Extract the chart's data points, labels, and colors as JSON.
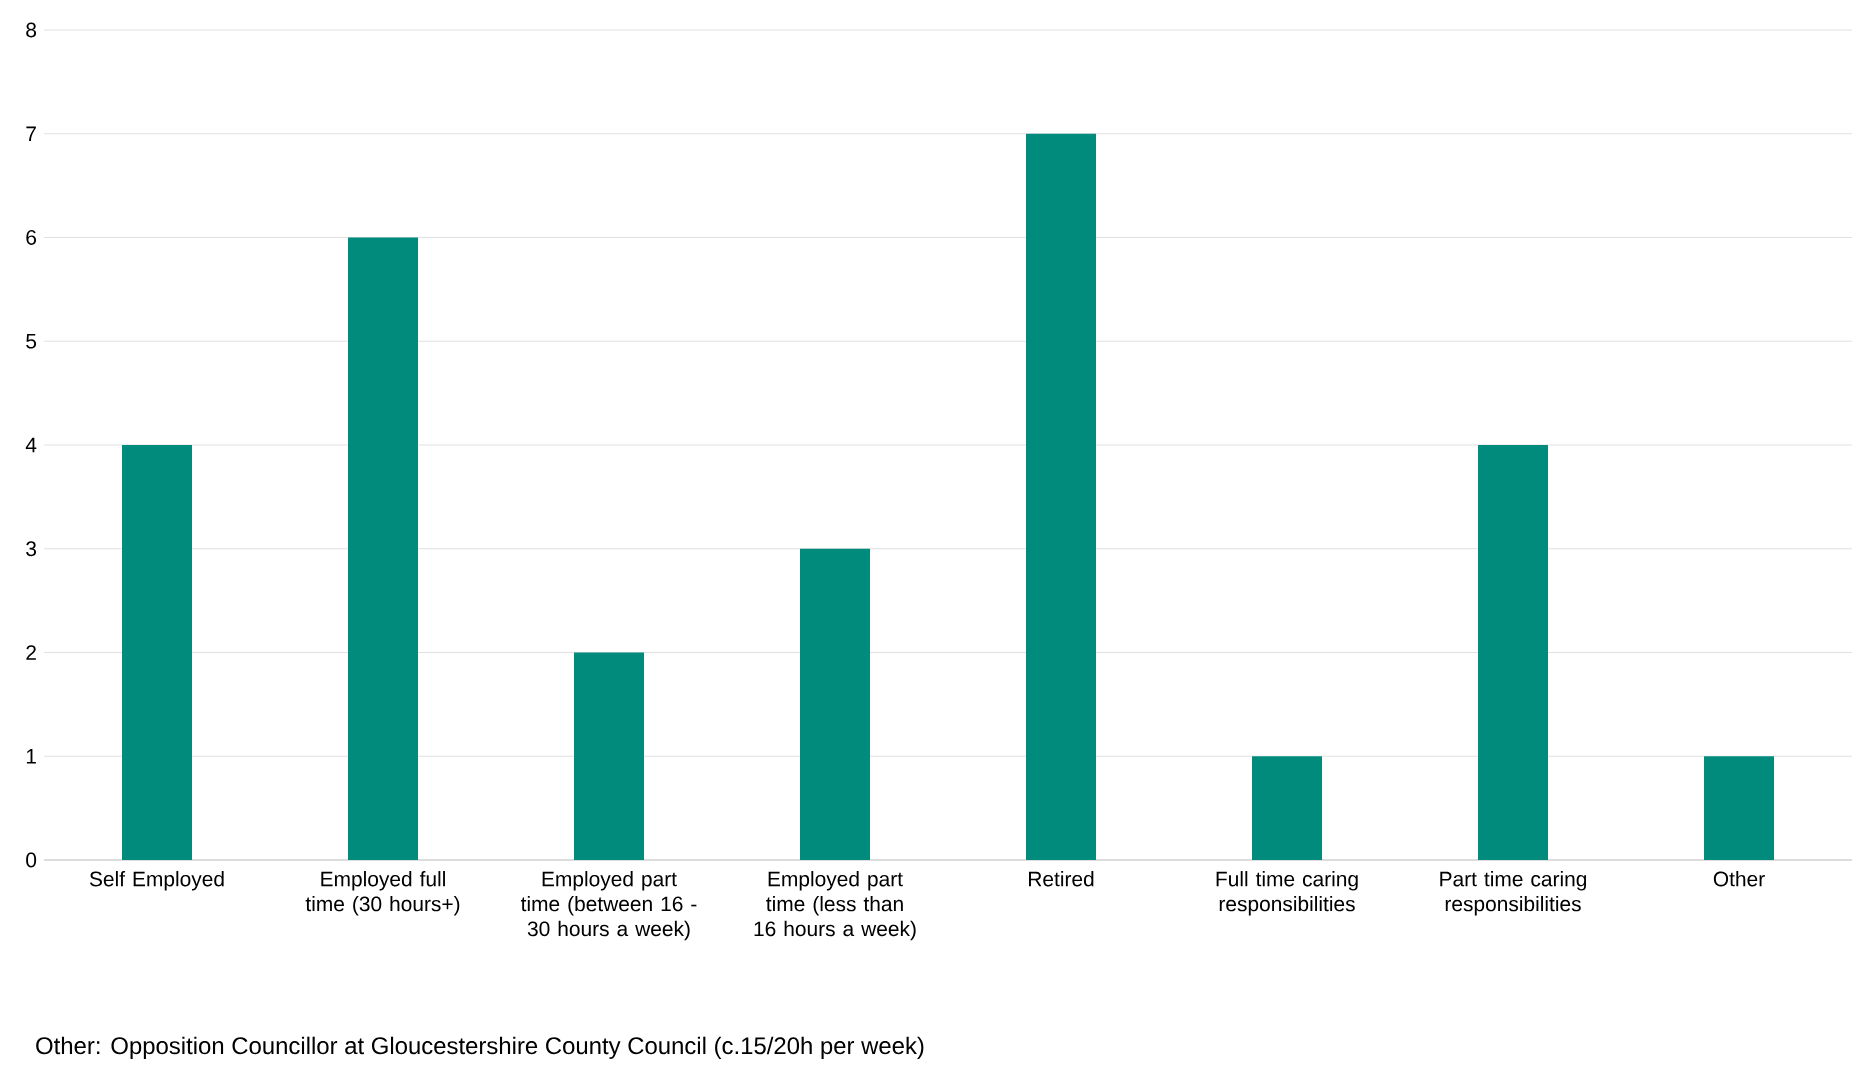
{
  "chart_data": {
    "type": "bar",
    "categories": [
      "Self Employed",
      "Employed full time (30 hours+)",
      "Employed part time (between 16 - 30 hours a week)",
      "Employed part time (less than 16 hours a week)",
      "Retired",
      "Full time caring responsibilities",
      "Part time caring responsibilities",
      "Other"
    ],
    "values": [
      4,
      6,
      2,
      3,
      7,
      1,
      4,
      1
    ],
    "color": "#008b7d",
    "ylim": [
      0,
      8
    ],
    "yticks": [
      0,
      1,
      2,
      3,
      4,
      5,
      6,
      7,
      8
    ],
    "grid": "y",
    "annotations": [
      "Other: Opposition Councillor at Gloucestershire County Council (c.15/20h per week)"
    ]
  }
}
